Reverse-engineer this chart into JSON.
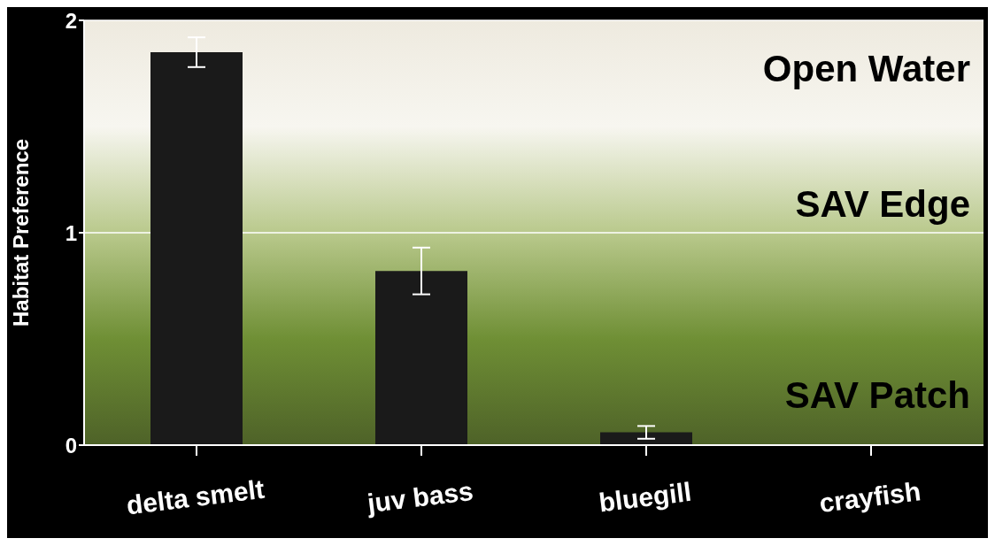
{
  "chart_data": {
    "type": "bar",
    "ylabel": "Habitat Preference",
    "categories": [
      "delta smelt",
      "juv bass",
      "bluegill",
      "crayfish"
    ],
    "values": [
      1.85,
      0.82,
      0.06,
      0
    ],
    "errors": [
      [
        1.78,
        1.92
      ],
      [
        0.71,
        0.93
      ],
      [
        0.03,
        0.09
      ],
      null
    ],
    "color": "#1a1a1a",
    "ylim": [
      0,
      2
    ],
    "yticks": [
      0,
      1,
      2
    ],
    "grid": "y",
    "annotations": [
      "Open Water",
      "SAV Edge",
      "SAV Patch"
    ]
  }
}
